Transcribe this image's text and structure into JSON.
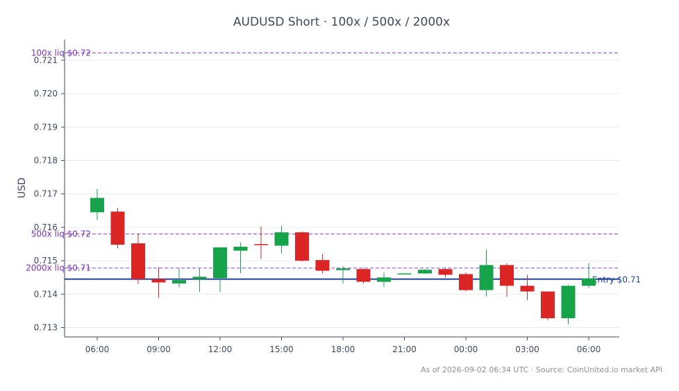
{
  "chart_data": {
    "type": "candlestick",
    "title": "AUDUSD Short · 100x / 500x / 2000x",
    "ylabel": "USD",
    "xlabel": "",
    "ylim": [
      0.71272,
      0.72162
    ],
    "yticks": [
      "0.713",
      "0.714",
      "0.715",
      "0.716",
      "0.717",
      "0.718",
      "0.719",
      "0.720",
      "0.721"
    ],
    "xticks": [
      {
        "label": "06:00",
        "index": 0
      },
      {
        "label": "09:00",
        "index": 3
      },
      {
        "label": "12:00",
        "index": 6
      },
      {
        "label": "15:00",
        "index": 9
      },
      {
        "label": "18:00",
        "index": 12
      },
      {
        "label": "21:00",
        "index": 15
      },
      {
        "label": "00:00",
        "index": 18
      },
      {
        "label": "03:00",
        "index": 21
      },
      {
        "label": "06:00",
        "index": 24
      }
    ],
    "candles": [
      {
        "o": 0.71645,
        "h": 0.71715,
        "l": 0.71622,
        "c": 0.71688
      },
      {
        "o": 0.71647,
        "h": 0.71658,
        "l": 0.71537,
        "c": 0.71548
      },
      {
        "o": 0.71552,
        "h": 0.7158,
        "l": 0.7143,
        "c": 0.71445
      },
      {
        "o": 0.71445,
        "h": 0.7148,
        "l": 0.7139,
        "c": 0.71435
      },
      {
        "o": 0.71432,
        "h": 0.71478,
        "l": 0.7142,
        "c": 0.71442
      },
      {
        "o": 0.71445,
        "h": 0.71478,
        "l": 0.71407,
        "c": 0.71452
      },
      {
        "o": 0.71448,
        "h": 0.7154,
        "l": 0.71407,
        "c": 0.7154
      },
      {
        "o": 0.7153,
        "h": 0.71555,
        "l": 0.71462,
        "c": 0.71542
      },
      {
        "o": 0.7155,
        "h": 0.71603,
        "l": 0.71505,
        "c": 0.71547
      },
      {
        "o": 0.71545,
        "h": 0.71605,
        "l": 0.71522,
        "c": 0.71585
      },
      {
        "o": 0.71585,
        "h": 0.71588,
        "l": 0.71497,
        "c": 0.715
      },
      {
        "o": 0.71502,
        "h": 0.7152,
        "l": 0.71462,
        "c": 0.7147
      },
      {
        "o": 0.71472,
        "h": 0.71483,
        "l": 0.71432,
        "c": 0.71477
      },
      {
        "o": 0.71475,
        "h": 0.71478,
        "l": 0.71432,
        "c": 0.71437
      },
      {
        "o": 0.71437,
        "h": 0.71465,
        "l": 0.71422,
        "c": 0.7145
      },
      {
        "o": 0.71462,
        "h": 0.71462,
        "l": 0.71462,
        "c": 0.71462
      },
      {
        "o": 0.71462,
        "h": 0.71475,
        "l": 0.7146,
        "c": 0.71473
      },
      {
        "o": 0.71475,
        "h": 0.71478,
        "l": 0.7145,
        "c": 0.71458
      },
      {
        "o": 0.7146,
        "h": 0.71465,
        "l": 0.71408,
        "c": 0.71412
      },
      {
        "o": 0.71412,
        "h": 0.71533,
        "l": 0.71393,
        "c": 0.71487
      },
      {
        "o": 0.71487,
        "h": 0.71493,
        "l": 0.71392,
        "c": 0.71425
      },
      {
        "o": 0.71425,
        "h": 0.71458,
        "l": 0.71382,
        "c": 0.71408
      },
      {
        "o": 0.71408,
        "h": 0.71408,
        "l": 0.71322,
        "c": 0.71328
      },
      {
        "o": 0.71328,
        "h": 0.71428,
        "l": 0.7131,
        "c": 0.71425
      },
      {
        "o": 0.71425,
        "h": 0.71493,
        "l": 0.71418,
        "c": 0.71447
      }
    ],
    "levels": [
      {
        "label": "100x liq $0.72",
        "value": 0.72122,
        "style": "dashed",
        "color": "#9b59e6",
        "text_color": "#7b2fbf"
      },
      {
        "label": "500x liq $0.72",
        "value": 0.7158,
        "style": "dashed",
        "color": "#9b59e6",
        "text_color": "#7b2fbf"
      },
      {
        "label": "2000x liq $0.71",
        "value": 0.71478,
        "style": "dashed",
        "color": "#9b59e6",
        "text_color": "#7b2fbf"
      },
      {
        "label": "Entry $0.71",
        "value": 0.71445,
        "style": "solid",
        "color": "#1f3f9a",
        "text_color": "#1f3f9a"
      }
    ],
    "colors": {
      "up": "#16a34a",
      "down": "#dc2626",
      "axis": "#3d4a5c",
      "grid": "#e9ecef"
    },
    "grid": true
  },
  "footer": {
    "text": "As of 2026-09-02 06:34 UTC · Source: CoinUnited.io market API"
  }
}
